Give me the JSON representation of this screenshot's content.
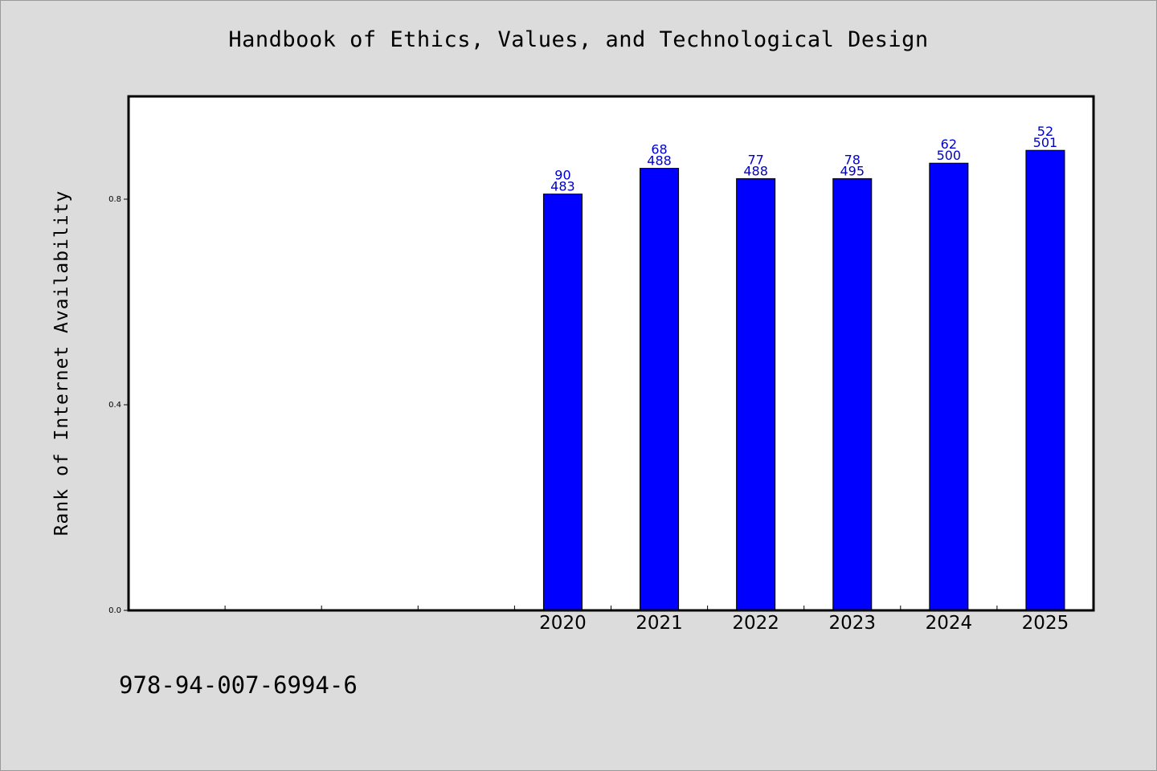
{
  "chart_data": {
    "type": "bar",
    "title": "Handbook of Ethics, Values, and Technological Design",
    "ylabel": "Rank of Internet Availability",
    "xlabel": "",
    "categories": [
      "2020",
      "2021",
      "2022",
      "2023",
      "2024",
      "2025"
    ],
    "empty_leading_slots": 4,
    "values": [
      0.81,
      0.86,
      0.84,
      0.84,
      0.87,
      0.895
    ],
    "labels_top": [
      "90",
      "68",
      "77",
      "78",
      "62",
      "52"
    ],
    "labels_bottom": [
      "483",
      "488",
      "488",
      "495",
      "500",
      "501"
    ],
    "ylim": [
      0,
      1.0
    ],
    "yticks": [
      0.0,
      0.4,
      0.8
    ],
    "ytick_labels": [
      "0.0",
      "0.4",
      "0.8"
    ],
    "bar_color": "#0000ff",
    "label_color": "#0000cc",
    "grid": false,
    "footer": "978-94-007-6994-6"
  }
}
